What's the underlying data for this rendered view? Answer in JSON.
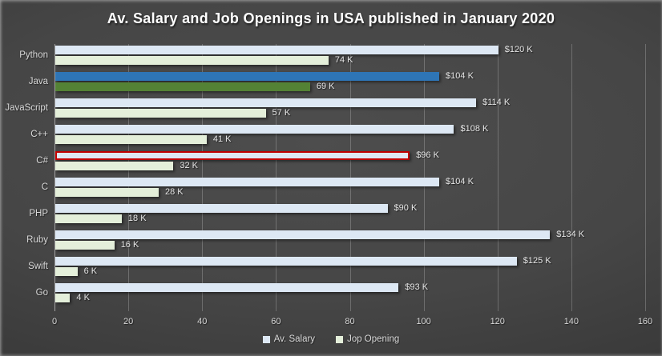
{
  "chart_data": {
    "type": "bar",
    "orientation": "horizontal",
    "title": "Av. Salary and Job Openings in USA published in January 2020",
    "categories": [
      "Python",
      "Java",
      "JavaScript",
      "C++",
      "C#",
      "C",
      "PHP",
      "Ruby",
      "Swift",
      "Go"
    ],
    "series": [
      {
        "name": "Av. Salary",
        "values": [
          120,
          104,
          114,
          108,
          96,
          104,
          90,
          134,
          125,
          93
        ],
        "labels": [
          "$120 K",
          "$104 K",
          "$114 K",
          "$108 K",
          "$96 K",
          "$104 K",
          "$90 K",
          "$134 K",
          "$125 K",
          "$93 K"
        ],
        "fill": "#dde8f4",
        "overrides": {
          "1": {
            "fill": "#2e75b6"
          },
          "4": {
            "border": "#c00000"
          }
        }
      },
      {
        "name": "Jop Opening",
        "values": [
          74,
          69,
          57,
          41,
          32,
          28,
          18,
          16,
          6,
          4
        ],
        "labels": [
          "74 K",
          "69 K",
          "57 K",
          "41 K",
          "32 K",
          "28 K",
          "18 K",
          "16 K",
          "6 K",
          "4 K"
        ],
        "fill": "#e4efda",
        "overrides": {
          "1": {
            "fill": "#548235"
          }
        }
      }
    ],
    "xlim": [
      0,
      160
    ],
    "x_ticks": [
      0,
      20,
      40,
      60,
      80,
      100,
      120,
      140,
      160
    ],
    "grid": true,
    "legend_position": "bottom-center",
    "colors": {
      "background_center": "#4d4d4d",
      "background_edge": "#242424",
      "title_text": "#ffffff",
      "axis_text": "#d9d9d9",
      "value_label_text": "#e6e6e6",
      "gridline": "#6f6f6f",
      "axis_line": "#a3a3a3",
      "salary_fill": "#dde8f4",
      "job_opening_fill": "#e4efda",
      "java_salary_highlight": "#2e75b6",
      "java_job_highlight": "#548235",
      "csharp_border_highlight": "#c00000"
    }
  }
}
